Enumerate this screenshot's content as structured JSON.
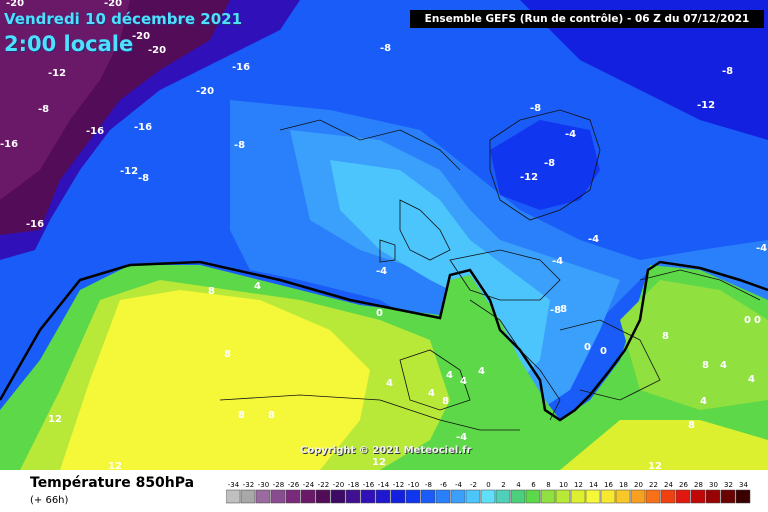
{
  "header": {
    "date_line": "Vendredi 10 décembre 2021",
    "time_line": "2:00 locale",
    "run_info": "Ensemble GEFS  (Run de contrôle)  - 06 Z du 07/12/2021"
  },
  "footer": {
    "title": "Température 850hPa",
    "subtitle": "(+ 66h)"
  },
  "copyright": "Copyright © 2021 Meteociel.fr",
  "legend": {
    "ticks": [
      "-34",
      "-32",
      "-30",
      "-28",
      "-26",
      "-24",
      "-22",
      "-20",
      "-18",
      "-16",
      "-14",
      "-12",
      "-10",
      "-8",
      "-6",
      "-4",
      "-2",
      "0",
      "2",
      "4",
      "6",
      "8",
      "10",
      "12",
      "14",
      "16",
      "18",
      "20",
      "22",
      "24",
      "26",
      "28",
      "30",
      "32",
      "34"
    ],
    "colors": [
      "#c0c0c0",
      "#a8a8a8",
      "#9a6aa0",
      "#8a4c90",
      "#7a2a7c",
      "#6a1868",
      "#520c58",
      "#3e0a66",
      "#401090",
      "#3010b8",
      "#2018d0",
      "#1420e0",
      "#1036f0",
      "#1a5cf8",
      "#2a80fa",
      "#3aa0fc",
      "#4cc4fc",
      "#60e0f8",
      "#50d0b8",
      "#4ccf7c",
      "#5cd848",
      "#90e040",
      "#b8e838",
      "#dcf030",
      "#f4f838",
      "#f8e830",
      "#f8c828",
      "#f8a020",
      "#f87018",
      "#f04010",
      "#e01810",
      "#c00808",
      "#980404",
      "#6a0202",
      "#3a0000"
    ]
  },
  "map_labels": [
    {
      "text": "-20"
    },
    {
      "text": "-20"
    },
    {
      "text": "-20"
    },
    {
      "text": "-20"
    },
    {
      "text": "-12"
    },
    {
      "text": "-16"
    },
    {
      "text": "-8"
    },
    {
      "text": "-20"
    },
    {
      "text": "-16"
    },
    {
      "text": "-16"
    },
    {
      "text": "-16"
    },
    {
      "text": "-12"
    },
    {
      "text": "-8"
    },
    {
      "text": "-8"
    },
    {
      "text": "-16"
    },
    {
      "text": "-8"
    },
    {
      "text": "-8"
    },
    {
      "text": "-4"
    },
    {
      "text": "-8"
    },
    {
      "text": "-12"
    },
    {
      "text": "-12"
    },
    {
      "text": "-8"
    },
    {
      "text": "-8"
    },
    {
      "text": "-4"
    },
    {
      "text": "-4"
    },
    {
      "text": "-4"
    },
    {
      "text": "-4"
    },
    {
      "text": "-8"
    },
    {
      "text": "0"
    },
    {
      "text": "0"
    },
    {
      "text": "0"
    },
    {
      "text": "0"
    },
    {
      "text": "8"
    },
    {
      "text": "4"
    },
    {
      "text": "8"
    },
    {
      "text": "8"
    },
    {
      "text": "8"
    },
    {
      "text": "12"
    },
    {
      "text": "12"
    },
    {
      "text": "12"
    },
    {
      "text": "12"
    },
    {
      "text": "4"
    },
    {
      "text": "4"
    },
    {
      "text": "4"
    },
    {
      "text": "4"
    },
    {
      "text": "4"
    },
    {
      "text": "8"
    },
    {
      "text": "8"
    },
    {
      "text": "8"
    },
    {
      "text": "4"
    },
    {
      "text": "4"
    },
    {
      "text": "4"
    },
    {
      "text": "8"
    },
    {
      "text": "-4"
    },
    {
      "text": "0"
    }
  ]
}
